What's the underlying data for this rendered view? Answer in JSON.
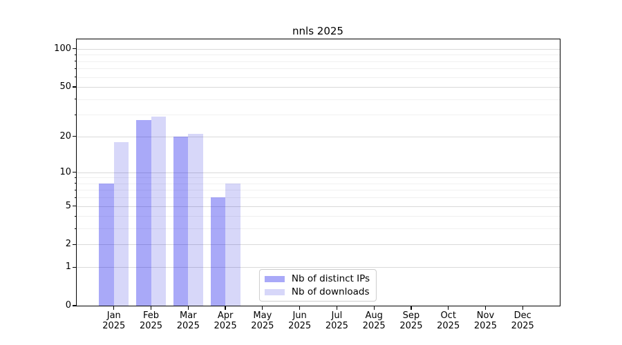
{
  "chart_data": {
    "type": "bar",
    "title": "nnls 2025",
    "categories": [
      {
        "month": "Jan",
        "year": "2025"
      },
      {
        "month": "Feb",
        "year": "2025"
      },
      {
        "month": "Mar",
        "year": "2025"
      },
      {
        "month": "Apr",
        "year": "2025"
      },
      {
        "month": "May",
        "year": "2025"
      },
      {
        "month": "Jun",
        "year": "2025"
      },
      {
        "month": "Jul",
        "year": "2025"
      },
      {
        "month": "Aug",
        "year": "2025"
      },
      {
        "month": "Sep",
        "year": "2025"
      },
      {
        "month": "Oct",
        "year": "2025"
      },
      {
        "month": "Nov",
        "year": "2025"
      },
      {
        "month": "Dec",
        "year": "2025"
      }
    ],
    "series": [
      {
        "name": "Nb of distinct IPs",
        "color": "rgba(8,8,235,0.35)",
        "values": [
          8,
          27,
          20,
          6,
          0,
          0,
          0,
          0,
          0,
          0,
          0,
          0
        ]
      },
      {
        "name": "Nb of downloads",
        "color": "rgba(8,8,215,0.16)",
        "values": [
          18,
          29,
          21,
          8,
          0,
          0,
          0,
          0,
          0,
          0,
          0,
          0
        ]
      }
    ],
    "yscale": "log1p",
    "ylim": [
      0,
      119
    ],
    "y_major_ticks": [
      {
        "label": "100",
        "value": 100
      },
      {
        "label": "50",
        "value": 50
      },
      {
        "label": "20",
        "value": 20
      },
      {
        "label": "10",
        "value": 10
      },
      {
        "label": "5",
        "value": 5
      },
      {
        "label": "2",
        "value": 2
      },
      {
        "label": "1",
        "value": 1
      },
      {
        "label": "0",
        "value": 0
      }
    ],
    "y_minor_ticks": [
      3,
      4,
      6,
      7,
      8,
      9,
      30,
      40,
      60,
      70,
      80,
      90
    ],
    "grid": true,
    "legend_position": "lower center",
    "colors": {
      "major_grid": "#d9d9d9",
      "minor_grid": "#f0f0f0",
      "spine": "#000000",
      "text": "#000000"
    }
  }
}
